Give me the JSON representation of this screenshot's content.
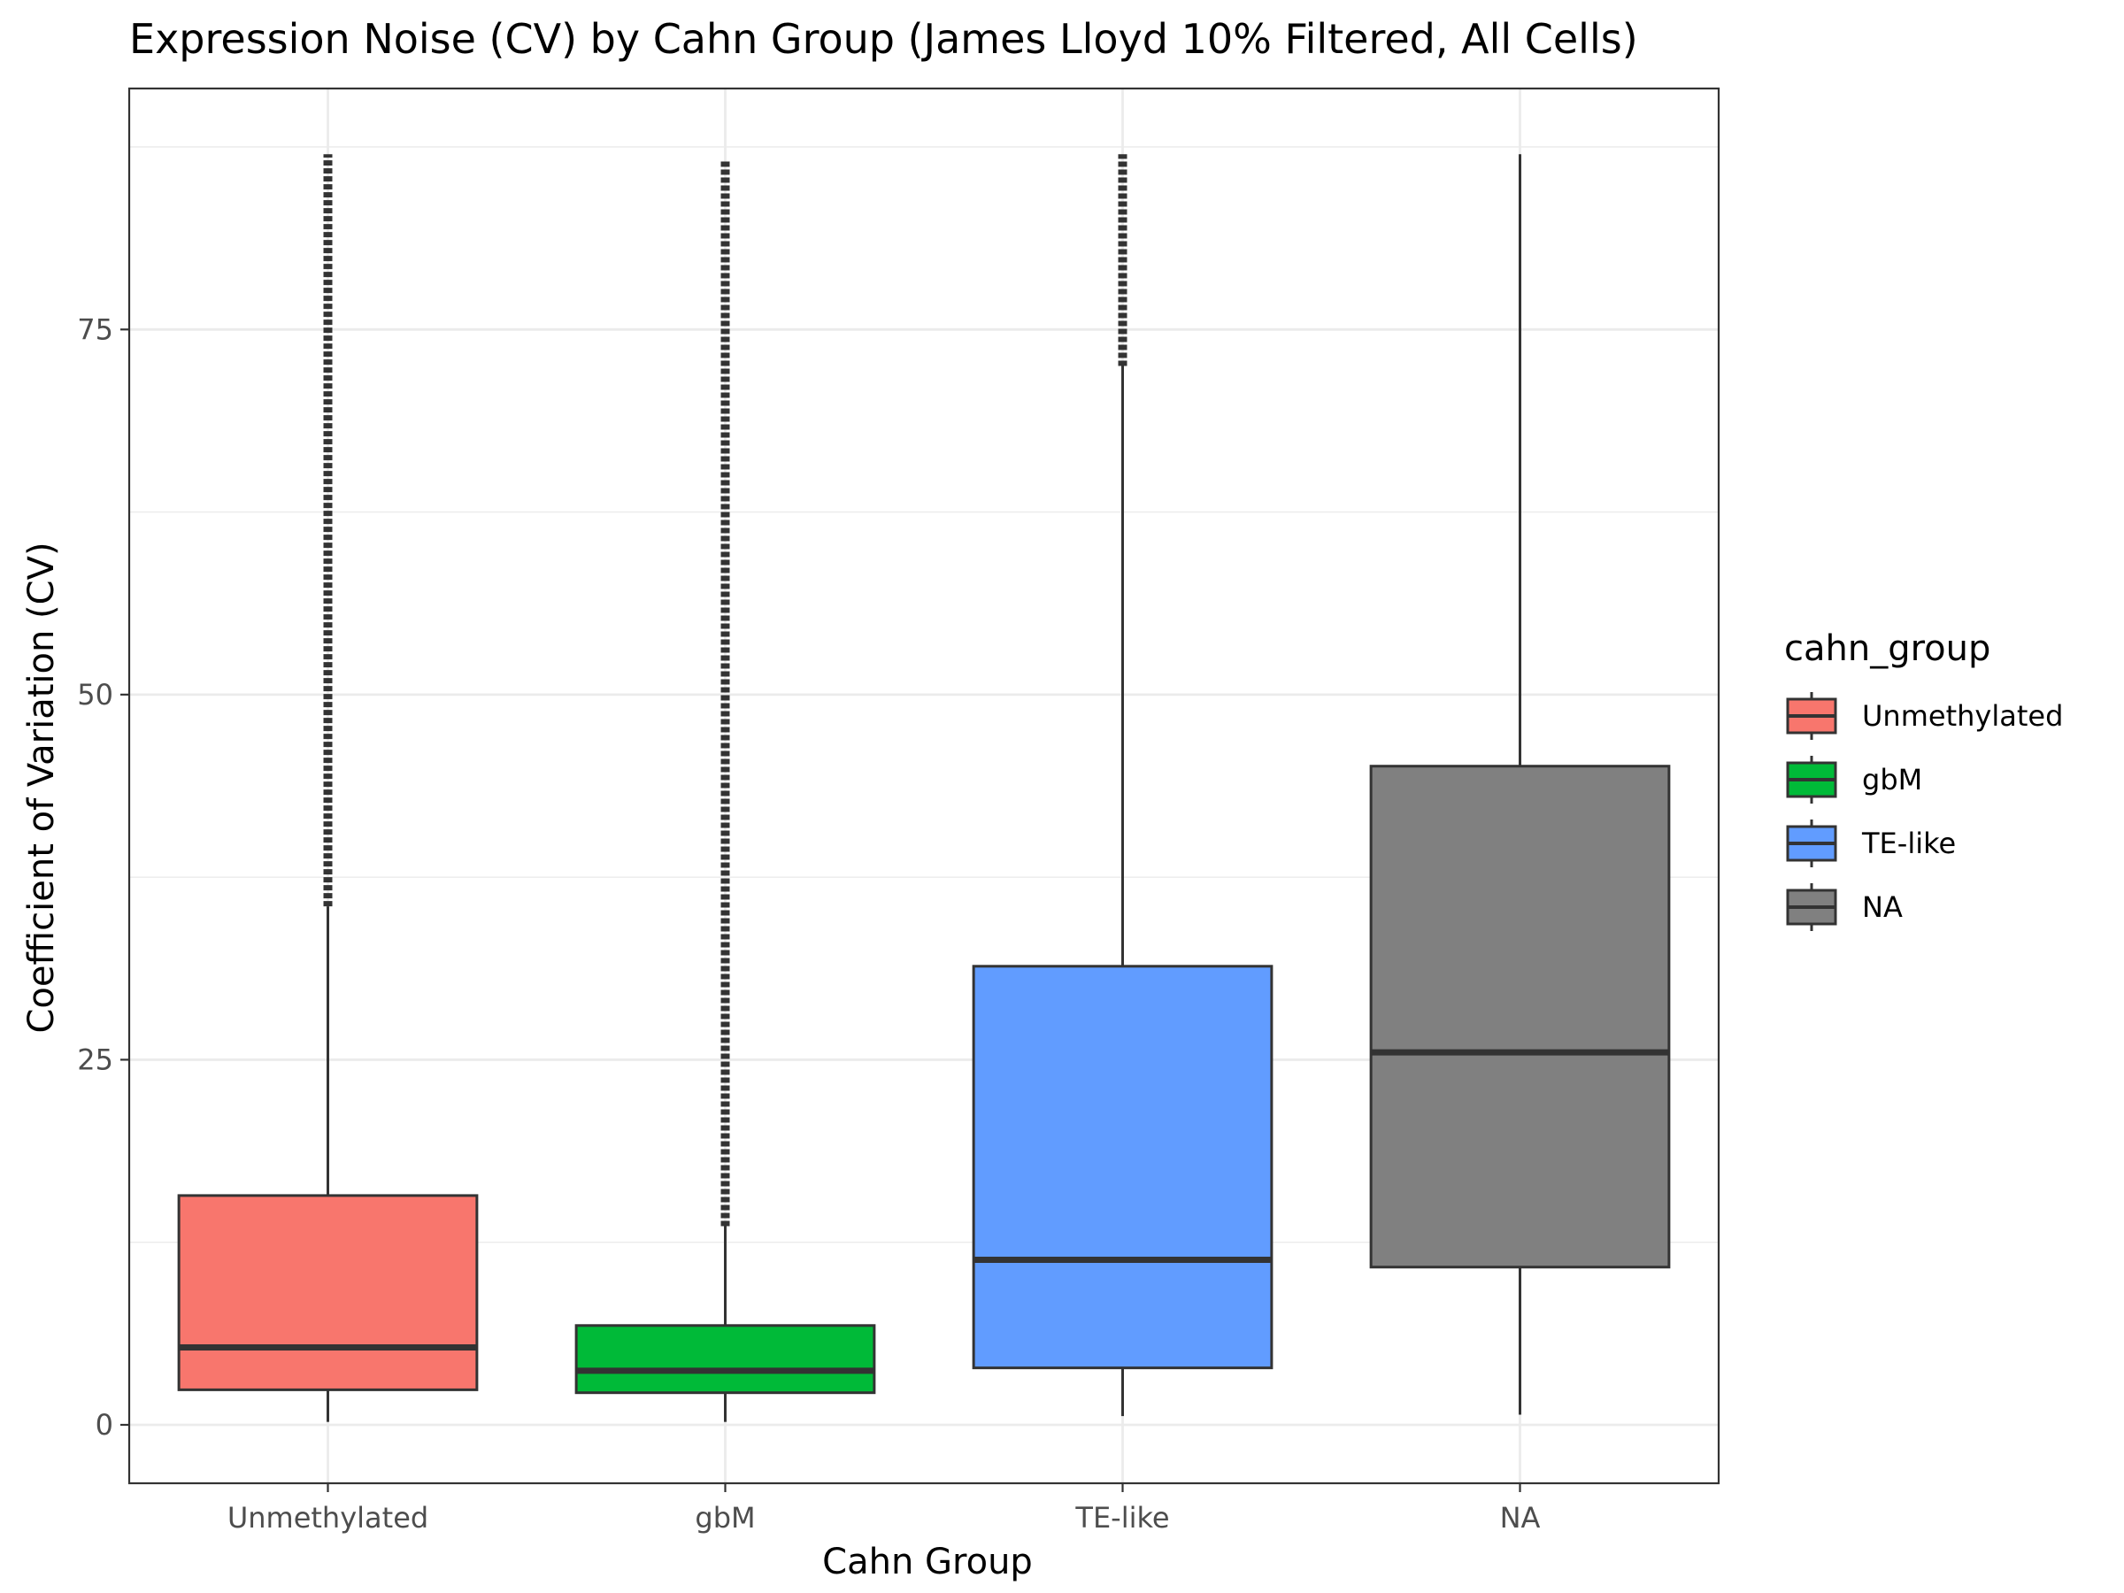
{
  "chart_data": {
    "type": "boxplot",
    "title": "Expression Noise (CV) by Cahn Group (James Lloyd 10% Filtered, All Cells)",
    "xlabel": "Cahn Group",
    "ylabel": "Coefficient of Variation (CV)",
    "ylim": [
      -4,
      91.5
    ],
    "yticks": [
      0,
      25,
      50,
      75
    ],
    "grid": true,
    "legend": {
      "title": "cahn_group",
      "position": "right"
    },
    "categories": [
      "Unmethylated",
      "gbM",
      "TE-like",
      "NA"
    ],
    "series": [
      {
        "name": "Unmethylated",
        "color": "#F8766D",
        "whisker_low": 0.2,
        "q1": 2.4,
        "median": 5.3,
        "q3": 15.7,
        "whisker_high": 35.5,
        "outlier_range": [
          35.5,
          87.0
        ]
      },
      {
        "name": "gbM",
        "color": "#00BA38",
        "whisker_low": 0.2,
        "q1": 2.2,
        "median": 3.7,
        "q3": 6.8,
        "whisker_high": 13.6,
        "outlier_range": [
          13.6,
          86.5
        ]
      },
      {
        "name": "TE-like",
        "color": "#619CFF",
        "whisker_low": 0.6,
        "q1": 3.9,
        "median": 11.3,
        "q3": 31.4,
        "whisker_high": 72.5,
        "outlier_range": [
          72.5,
          87.0
        ]
      },
      {
        "name": "NA",
        "color": "#808080",
        "whisker_low": 0.7,
        "q1": 10.8,
        "median": 25.5,
        "q3": 45.1,
        "whisker_high": 87.0,
        "outlier_range": null
      }
    ]
  }
}
